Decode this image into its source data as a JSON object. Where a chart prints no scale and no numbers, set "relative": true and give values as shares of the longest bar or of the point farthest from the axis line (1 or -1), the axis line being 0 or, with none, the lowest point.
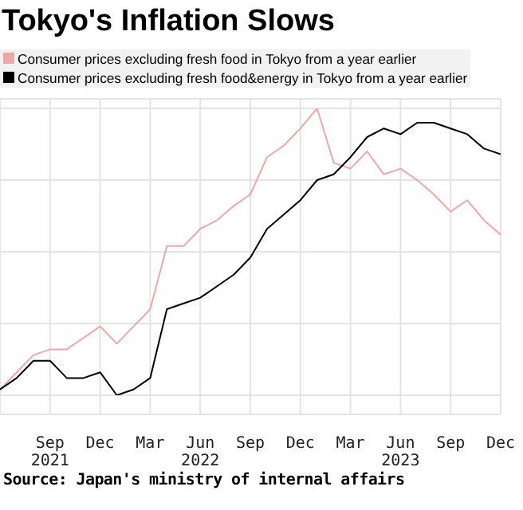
{
  "chart_data": {
    "type": "line",
    "title": "Tokyo's Inflation Slows",
    "relative": true,
    "legend": "top left",
    "grid": true,
    "marker": "none",
    "x": [
      "2021-06",
      "2021-07",
      "2021-08",
      "2021-09",
      "2021-10",
      "2021-11",
      "2021-12",
      "2022-01",
      "2022-02",
      "2022-03",
      "2022-04",
      "2022-05",
      "2022-06",
      "2022-07",
      "2022-08",
      "2022-09",
      "2022-10",
      "2022-11",
      "2022-12",
      "2023-01",
      "2023-02",
      "2023-03",
      "2023-04",
      "2023-05",
      "2023-06",
      "2023-07",
      "2023-08",
      "2023-09",
      "2023-10",
      "2023-11",
      "2023-12"
    ],
    "xlim": [
      "2021-06",
      "2023-12"
    ],
    "xticks": [
      {
        "value": "2021-09",
        "label": "Sep\n2021"
      },
      {
        "value": "2021-12",
        "label": "Dec"
      },
      {
        "value": "2022-03",
        "label": "Mar"
      },
      {
        "value": "2022-06",
        "label": "Jun\n2022"
      },
      {
        "value": "2022-09",
        "label": "Sep"
      },
      {
        "value": "2022-12",
        "label": "Dec"
      },
      {
        "value": "2023-03",
        "label": "Mar"
      },
      {
        "value": "2023-06",
        "label": "Jun\n2023"
      },
      {
        "value": "2023-09",
        "label": "Sep"
      },
      {
        "value": "2023-12",
        "label": "Dec"
      }
    ],
    "series": [
      {
        "name": "Consumer prices excluding fresh food in Tokyo from a year earlier",
        "color": "#eaa8a8",
        "values": [
          0.02,
          0.08,
          0.14,
          0.16,
          0.16,
          0.2,
          0.24,
          0.18,
          0.24,
          0.3,
          0.52,
          0.52,
          0.58,
          0.61,
          0.66,
          0.7,
          0.83,
          0.87,
          0.93,
          1,
          0.81,
          0.79,
          0.85,
          0.77,
          0.79,
          0.75,
          0.7,
          0.64,
          0.68,
          0.61,
          0.56
        ]
      },
      {
        "name": "Consumer prices excluding fresh food&energy in Tokyo from a year earlier",
        "color": "#000000",
        "values": [
          0.02,
          0.06,
          0.12,
          0.12,
          0.06,
          0.06,
          0.08,
          0,
          0.02,
          0.06,
          0.3,
          0.32,
          0.34,
          0.38,
          0.42,
          0.48,
          0.58,
          0.63,
          0.68,
          0.75,
          0.77,
          0.83,
          0.9,
          0.93,
          0.91,
          0.95,
          0.95,
          0.93,
          0.91,
          0.86,
          0.84
        ]
      }
    ],
    "annotations": [
      "Source: Japan's ministry of internal affairs"
    ]
  }
}
